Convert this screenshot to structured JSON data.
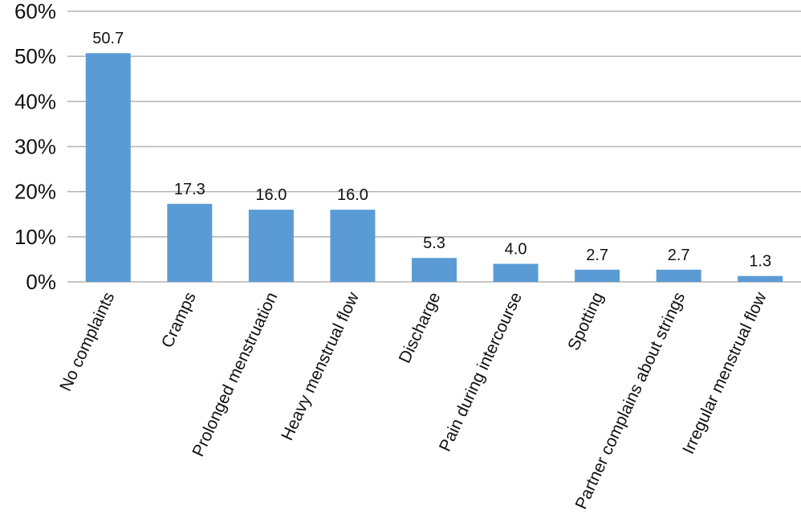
{
  "chart_data": {
    "type": "bar",
    "categories": [
      "No complaints",
      "Cramps",
      "Prolonged menstruation",
      "Heavy menstrual flow",
      "Discharge",
      "Pain during intercourse",
      "Spotting",
      "Partner complains about strings",
      "Irregular menstrual flow"
    ],
    "values": [
      50.7,
      17.3,
      16.0,
      16.0,
      5.3,
      4.0,
      2.7,
      2.7,
      1.3
    ],
    "data_labels": [
      "50.7",
      "17.3",
      "16.0",
      "16.0",
      "5.3",
      "4.0",
      "2.7",
      "2.7",
      "1.3"
    ],
    "y_ticks": [
      0,
      10,
      20,
      30,
      40,
      50,
      60
    ],
    "y_tick_labels": [
      "0%",
      "10%",
      "20%",
      "30%",
      "40%",
      "50%",
      "60%"
    ],
    "ylim": [
      0,
      60
    ],
    "title": "",
    "xlabel": "",
    "ylabel": "",
    "grid": true,
    "legend": "none",
    "colors": {
      "bar": "#5b9bd5",
      "grid": "#b3b3b3",
      "text": "#111111"
    }
  }
}
